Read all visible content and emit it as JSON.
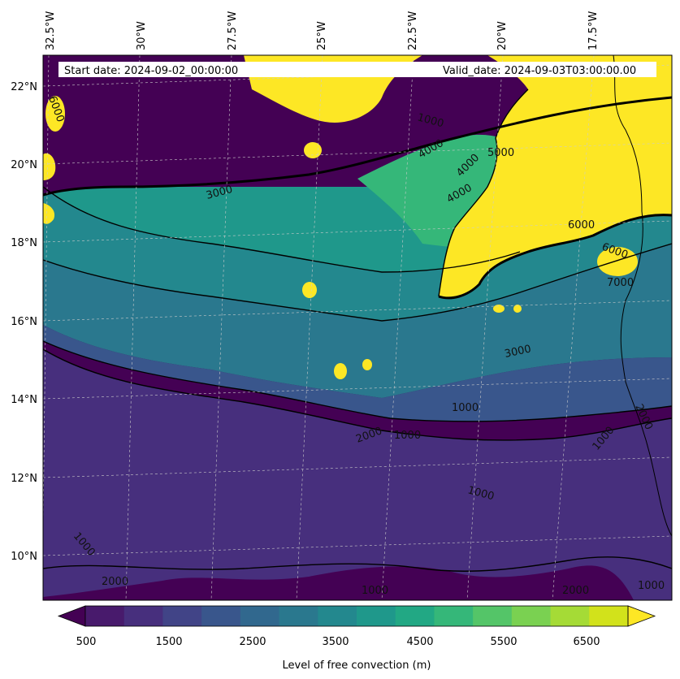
{
  "header": {
    "start_date": "Start date: 2024-09-02_00:00:00",
    "valid_date": "Valid_date: 2024-09-03T03:00:00.00"
  },
  "colors": {
    "levels": [
      "#440154",
      "#481a6c",
      "#472f7d",
      "#414487",
      "#39568c",
      "#31688e",
      "#2a788e",
      "#23888e",
      "#1f988b",
      "#22a884",
      "#35b779",
      "#54c568",
      "#7ad151",
      "#a5db36",
      "#d2e21b",
      "#fde725"
    ],
    "contour_line": "#000000",
    "grid": "#cccccc"
  },
  "chart_data": {
    "type": "contour map",
    "variable": "Level of free convection (m)",
    "lon_ticks": [
      "32.5°W",
      "30°W",
      "27.5°W",
      "25°W",
      "22.5°W",
      "20°W",
      "17.5°W"
    ],
    "lat_ticks": [
      "22°N",
      "20°N",
      "18°N",
      "16°N",
      "14°N",
      "12°N",
      "10°N"
    ],
    "contour_levels": [
      500,
      1000,
      1500,
      2000,
      2500,
      3000,
      3500,
      4000,
      4500,
      5000,
      5500,
      6000,
      6500,
      7000
    ],
    "contour_line_levels": [
      1000,
      2000,
      3000,
      4000,
      5000,
      6000,
      7000
    ],
    "contour_labels": [
      {
        "text": "1000"
      },
      {
        "text": "1000"
      },
      {
        "text": "1000"
      },
      {
        "text": "1000"
      },
      {
        "text": "1000"
      },
      {
        "text": "1000"
      },
      {
        "text": "1000"
      },
      {
        "text": "1000"
      },
      {
        "text": "2000"
      },
      {
        "text": "2000"
      },
      {
        "text": "2000"
      },
      {
        "text": "2000"
      },
      {
        "text": "3000"
      },
      {
        "text": "3000"
      },
      {
        "text": "4000"
      },
      {
        "text": "4000"
      },
      {
        "text": "4000"
      },
      {
        "text": "5000"
      },
      {
        "text": "6000"
      },
      {
        "text": "6000"
      },
      {
        "text": "7000"
      },
      {
        "text": "6000"
      }
    ],
    "colorbar": {
      "ticks": [
        "500",
        "1500",
        "2500",
        "3500",
        "4500",
        "5500",
        "6500"
      ],
      "label": "Level of free convection (m)",
      "extend": "both"
    },
    "regions": {
      "north_high_lfc": "≥7000 m (yellow) north of ~20°N and over western Africa",
      "middle_band": "3000–5000 m between ~14°N and ~19°N",
      "south_low_lfc": "500–1500 m south of ~14°N"
    }
  }
}
